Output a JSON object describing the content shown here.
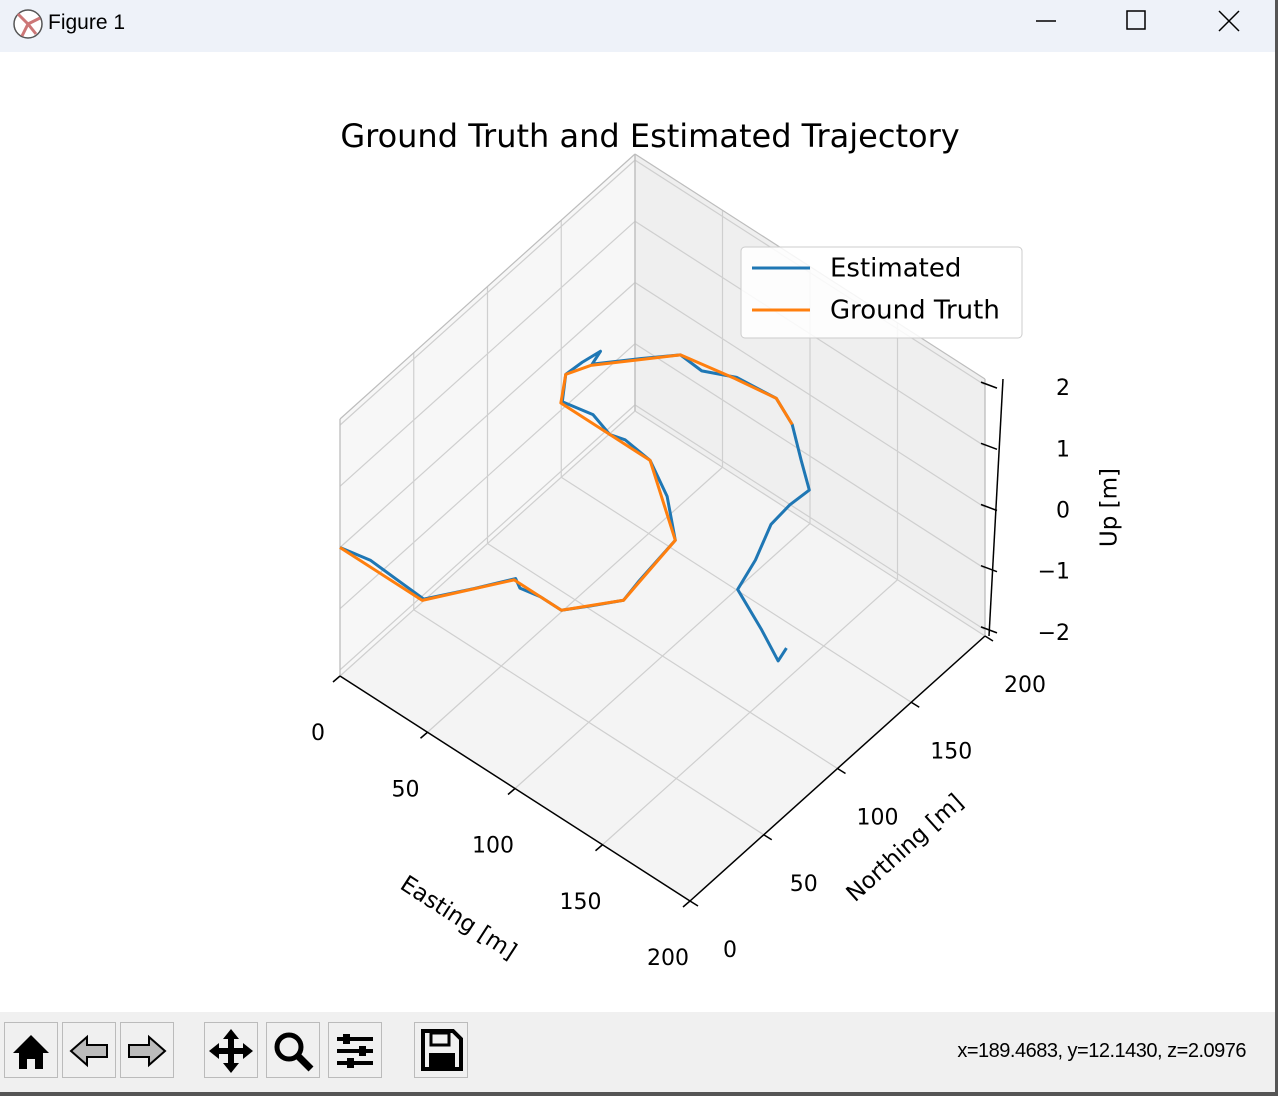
{
  "window": {
    "title": "Figure 1",
    "status": "x=189.4683, y=12.1430, z=2.0976"
  },
  "chart_data": {
    "type": "line3d",
    "title": "Ground Truth and Estimated Trajectory",
    "xlabel": "Easting [m]",
    "ylabel": "Northing [m]",
    "zlabel": "Up [m]",
    "xlim": [
      0,
      200
    ],
    "ylim": [
      0,
      200
    ],
    "zlim": [
      -2.1,
      2.1
    ],
    "xticks": [
      0,
      50,
      100,
      150,
      200
    ],
    "yticks": [
      0,
      50,
      100,
      150,
      200
    ],
    "zticks": [
      {
        "value": -2,
        "label": "−2"
      },
      {
        "value": -1,
        "label": "−1"
      },
      0,
      1,
      2
    ],
    "grid": true,
    "legend": "upper right",
    "series": [
      {
        "name": "Estimated",
        "color": "#1f77b4",
        "x": [
          0,
          15,
          30,
          47,
          60,
          70,
          75,
          85,
          97,
          105,
          114,
          112,
          109,
          90,
          71,
          55,
          48,
          35,
          20,
          11,
          12,
          14,
          16,
          30,
          42,
          55,
          69,
          90,
          105,
          121,
          135,
          134,
          135,
          143,
          148,
          171,
          188,
          186
        ],
        "y": [
          0,
          3,
          2,
          1,
          20,
          36,
          33,
          35,
          35,
          45,
          57,
          70,
          98,
          115,
          126,
          128,
          126,
          130,
          127,
          140,
          150,
          160,
          152,
          168,
          181,
          180,
          187,
          189,
          182,
          169,
          158,
          146,
          132,
          112,
          94,
          83,
          74,
          82
        ],
        "z": [
          0,
          0,
          0,
          0,
          0,
          0,
          0,
          0,
          0,
          0,
          0,
          0,
          0,
          0,
          0,
          0,
          0,
          0,
          0,
          0,
          0,
          0,
          0,
          0,
          0,
          0,
          0,
          0,
          0,
          0,
          0,
          0,
          0,
          0,
          0,
          0,
          0,
          0
        ]
      },
      {
        "name": "Ground Truth",
        "color": "#ff7f0e",
        "x": [
          0,
          47,
          70,
          97,
          114,
          109,
          71,
          48,
          20,
          11,
          16,
          42,
          69,
          90,
          105
        ],
        "y": [
          0,
          0,
          35,
          35,
          57,
          98,
          126,
          126,
          126,
          140,
          151,
          181,
          186,
          189,
          182
        ],
        "z": [
          0,
          0,
          0,
          0,
          0,
          0,
          0,
          0,
          0,
          0,
          0,
          0,
          0,
          0,
          0
        ]
      }
    ]
  }
}
